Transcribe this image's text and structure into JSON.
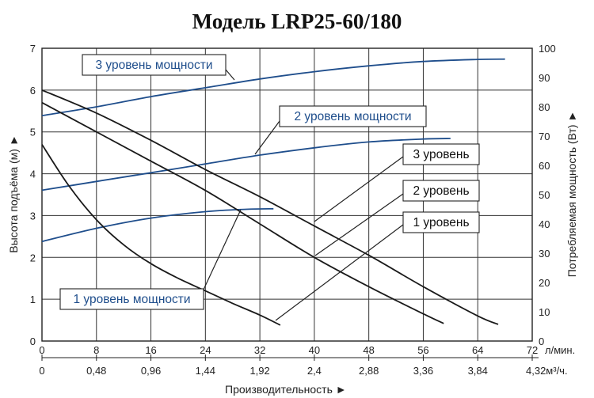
{
  "chart_data": {
    "type": "line",
    "title": "Модель LRP25-60/180",
    "x_top_label": "л/мин.",
    "x_bottom_label_text": "4,32м³/ч.",
    "xlabel": "Производительность ►",
    "ylabel_left": "Высота подъёма (м) ►",
    "ylabel_right": "Потребляемая мощность (Вт) ►",
    "xlim": [
      0,
      72
    ],
    "ylim_left": [
      0,
      7
    ],
    "ylim_right": [
      0,
      100
    ],
    "x_ticks_top": [
      "0",
      "8",
      "16",
      "24",
      "32",
      "40",
      "48",
      "56",
      "64",
      "72"
    ],
    "x_ticks_bottom": [
      "0",
      "0,48",
      "0,96",
      "1,44",
      "1,92",
      "2,4",
      "2,88",
      "3,36",
      "3,84"
    ],
    "y_ticks_left": [
      "0",
      "1",
      "2",
      "3",
      "4",
      "5",
      "6",
      "7"
    ],
    "y_ticks_right": [
      "0",
      "10",
      "20",
      "30",
      "40",
      "50",
      "60",
      "70",
      "80",
      "90",
      "100"
    ],
    "grid": true,
    "head_series": [
      {
        "name": "1 уровень",
        "axis": "left",
        "color": "#1a1a1a",
        "x": [
          0,
          4,
          8,
          12,
          16,
          20,
          24,
          28,
          32,
          35
        ],
        "y": [
          4.7,
          3.7,
          2.9,
          2.3,
          1.85,
          1.5,
          1.2,
          0.9,
          0.62,
          0.38
        ]
      },
      {
        "name": "2 уровень",
        "axis": "left",
        "color": "#1a1a1a",
        "x": [
          0,
          8,
          16,
          24,
          32,
          40,
          48,
          56,
          59
        ],
        "y": [
          5.7,
          5.0,
          4.3,
          3.6,
          2.8,
          2.0,
          1.3,
          0.65,
          0.42
        ]
      },
      {
        "name": "3 уровень",
        "axis": "left",
        "color": "#1a1a1a",
        "x": [
          0,
          8,
          16,
          24,
          32,
          40,
          48,
          56,
          64,
          67
        ],
        "y": [
          6.0,
          5.45,
          4.8,
          4.1,
          3.45,
          2.75,
          2.05,
          1.3,
          0.6,
          0.4
        ]
      }
    ],
    "power_series": [
      {
        "name": "1 уровень мощности",
        "axis": "right",
        "color": "#1f4e8c",
        "x": [
          0,
          8,
          16,
          24,
          30,
          34
        ],
        "y": [
          34,
          38.5,
          42,
          44.2,
          45,
          45.2
        ]
      },
      {
        "name": "2 уровень мощности",
        "axis": "right",
        "color": "#1f4e8c",
        "x": [
          0,
          8,
          16,
          24,
          32,
          40,
          48,
          56,
          60
        ],
        "y": [
          51.5,
          54.5,
          57.5,
          60.5,
          63.5,
          66,
          68,
          69,
          69.2
        ]
      },
      {
        "name": "3 уровень мощности",
        "axis": "right",
        "color": "#1f4e8c",
        "x": [
          0,
          8,
          16,
          24,
          32,
          40,
          48,
          56,
          64,
          68
        ],
        "y": [
          77,
          80,
          83.5,
          86.5,
          89.5,
          92,
          94,
          95.5,
          96.2,
          96.3
        ]
      }
    ],
    "callouts": [
      {
        "text": "3 уровень мощности",
        "color": "#1f4e8c"
      },
      {
        "text": "2 уровень мощности",
        "color": "#1f4e8c"
      },
      {
        "text": "1 уровень мощности",
        "color": "#1f4e8c"
      },
      {
        "text": "3 уровень",
        "color": "#111111"
      },
      {
        "text": "2 уровень",
        "color": "#111111"
      },
      {
        "text": "1 уровень",
        "color": "#111111"
      }
    ]
  }
}
